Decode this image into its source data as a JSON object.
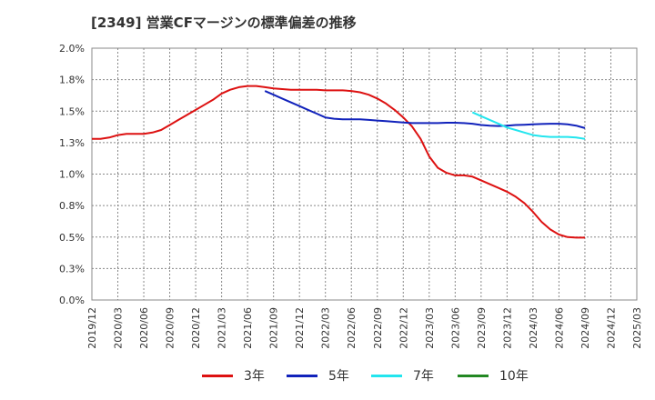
{
  "title": "[2349]  営業CFマージンの標準偏差の推移",
  "chart_data": {
    "type": "line",
    "title": "[2349]  営業CFマージンの標準偏差の推移",
    "xlabel": "",
    "ylabel": "",
    "ylim": [
      0,
      2.0
    ],
    "y_ticks": [
      "0.0%",
      "0.3%",
      "0.5%",
      "0.8%",
      "1.0%",
      "1.3%",
      "1.5%",
      "1.8%",
      "2.0%"
    ],
    "x_ticks": [
      "2019/12",
      "2020/03",
      "2020/06",
      "2020/09",
      "2020/12",
      "2021/03",
      "2021/06",
      "2021/09",
      "2021/12",
      "2022/03",
      "2022/06",
      "2022/09",
      "2022/12",
      "2023/03",
      "2023/06",
      "2023/09",
      "2023/12",
      "2024/03",
      "2024/06",
      "2024/09",
      "2024/12",
      "2025/03"
    ],
    "grid": true,
    "legend_position": "bottom",
    "series": [
      {
        "name": "3年",
        "color": "#dd1111",
        "points": [
          [
            "2019/12",
            1.28
          ],
          [
            "2020/01",
            1.28
          ],
          [
            "2020/02",
            1.29
          ],
          [
            "2020/03",
            1.31
          ],
          [
            "2020/04",
            1.32
          ],
          [
            "2020/05",
            1.32
          ],
          [
            "2020/06",
            1.32
          ],
          [
            "2020/07",
            1.33
          ],
          [
            "2020/08",
            1.35
          ],
          [
            "2020/09",
            1.39
          ],
          [
            "2020/10",
            1.43
          ],
          [
            "2020/11",
            1.47
          ],
          [
            "2020/12",
            1.51
          ],
          [
            "2021/01",
            1.55
          ],
          [
            "2021/02",
            1.59
          ],
          [
            "2021/03",
            1.64
          ],
          [
            "2021/04",
            1.67
          ],
          [
            "2021/05",
            1.69
          ],
          [
            "2021/06",
            1.7
          ],
          [
            "2021/07",
            1.7
          ],
          [
            "2021/08",
            1.69
          ],
          [
            "2021/09",
            1.68
          ],
          [
            "2021/10",
            1.675
          ],
          [
            "2021/11",
            1.67
          ],
          [
            "2021/12",
            1.67
          ],
          [
            "2022/01",
            1.67
          ],
          [
            "2022/02",
            1.67
          ],
          [
            "2022/03",
            1.665
          ],
          [
            "2022/04",
            1.665
          ],
          [
            "2022/05",
            1.665
          ],
          [
            "2022/06",
            1.66
          ],
          [
            "2022/07",
            1.65
          ],
          [
            "2022/08",
            1.63
          ],
          [
            "2022/09",
            1.6
          ],
          [
            "2022/10",
            1.56
          ],
          [
            "2022/11",
            1.51
          ],
          [
            "2022/12",
            1.45
          ],
          [
            "2023/01",
            1.38
          ],
          [
            "2023/02",
            1.28
          ],
          [
            "2023/03",
            1.14
          ],
          [
            "2023/04",
            1.05
          ],
          [
            "2023/05",
            1.01
          ],
          [
            "2023/06",
            0.99
          ],
          [
            "2023/07",
            0.99
          ],
          [
            "2023/08",
            0.98
          ],
          [
            "2023/09",
            0.95
          ],
          [
            "2023/10",
            0.92
          ],
          [
            "2023/11",
            0.89
          ],
          [
            "2023/12",
            0.86
          ],
          [
            "2024/01",
            0.82
          ],
          [
            "2024/02",
            0.77
          ],
          [
            "2024/03",
            0.7
          ],
          [
            "2024/04",
            0.62
          ],
          [
            "2024/05",
            0.56
          ],
          [
            "2024/06",
            0.52
          ],
          [
            "2024/07",
            0.5
          ],
          [
            "2024/08",
            0.495
          ],
          [
            "2024/09",
            0.495
          ]
        ]
      },
      {
        "name": "5年",
        "color": "#1122bb",
        "points": [
          [
            "2021/08",
            1.66
          ],
          [
            "2021/09",
            1.63
          ],
          [
            "2021/10",
            1.6
          ],
          [
            "2021/11",
            1.57
          ],
          [
            "2021/12",
            1.54
          ],
          [
            "2022/01",
            1.51
          ],
          [
            "2022/02",
            1.48
          ],
          [
            "2022/03",
            1.45
          ],
          [
            "2022/04",
            1.44
          ],
          [
            "2022/05",
            1.435
          ],
          [
            "2022/06",
            1.435
          ],
          [
            "2022/07",
            1.435
          ],
          [
            "2022/08",
            1.43
          ],
          [
            "2022/09",
            1.425
          ],
          [
            "2022/10",
            1.42
          ],
          [
            "2022/11",
            1.415
          ],
          [
            "2022/12",
            1.41
          ],
          [
            "2023/01",
            1.405
          ],
          [
            "2023/02",
            1.405
          ],
          [
            "2023/03",
            1.405
          ],
          [
            "2023/04",
            1.405
          ],
          [
            "2023/05",
            1.408
          ],
          [
            "2023/06",
            1.408
          ],
          [
            "2023/07",
            1.405
          ],
          [
            "2023/08",
            1.4
          ],
          [
            "2023/09",
            1.39
          ],
          [
            "2023/10",
            1.385
          ],
          [
            "2023/11",
            1.382
          ],
          [
            "2023/12",
            1.385
          ],
          [
            "2024/01",
            1.39
          ],
          [
            "2024/02",
            1.392
          ],
          [
            "2024/03",
            1.395
          ],
          [
            "2024/04",
            1.398
          ],
          [
            "2024/05",
            1.4
          ],
          [
            "2024/06",
            1.4
          ],
          [
            "2024/07",
            1.395
          ],
          [
            "2024/08",
            1.385
          ],
          [
            "2024/09",
            1.365
          ]
        ]
      },
      {
        "name": "7年",
        "color": "#22e5ee",
        "points": [
          [
            "2023/08",
            1.49
          ],
          [
            "2023/09",
            1.46
          ],
          [
            "2023/10",
            1.43
          ],
          [
            "2023/11",
            1.4
          ],
          [
            "2023/12",
            1.37
          ],
          [
            "2024/01",
            1.35
          ],
          [
            "2024/02",
            1.33
          ],
          [
            "2024/03",
            1.31
          ],
          [
            "2024/04",
            1.3
          ],
          [
            "2024/05",
            1.295
          ],
          [
            "2024/06",
            1.295
          ],
          [
            "2024/07",
            1.295
          ],
          [
            "2024/08",
            1.29
          ],
          [
            "2024/09",
            1.28
          ]
        ]
      },
      {
        "name": "10年",
        "color": "#228822",
        "points": []
      }
    ]
  }
}
